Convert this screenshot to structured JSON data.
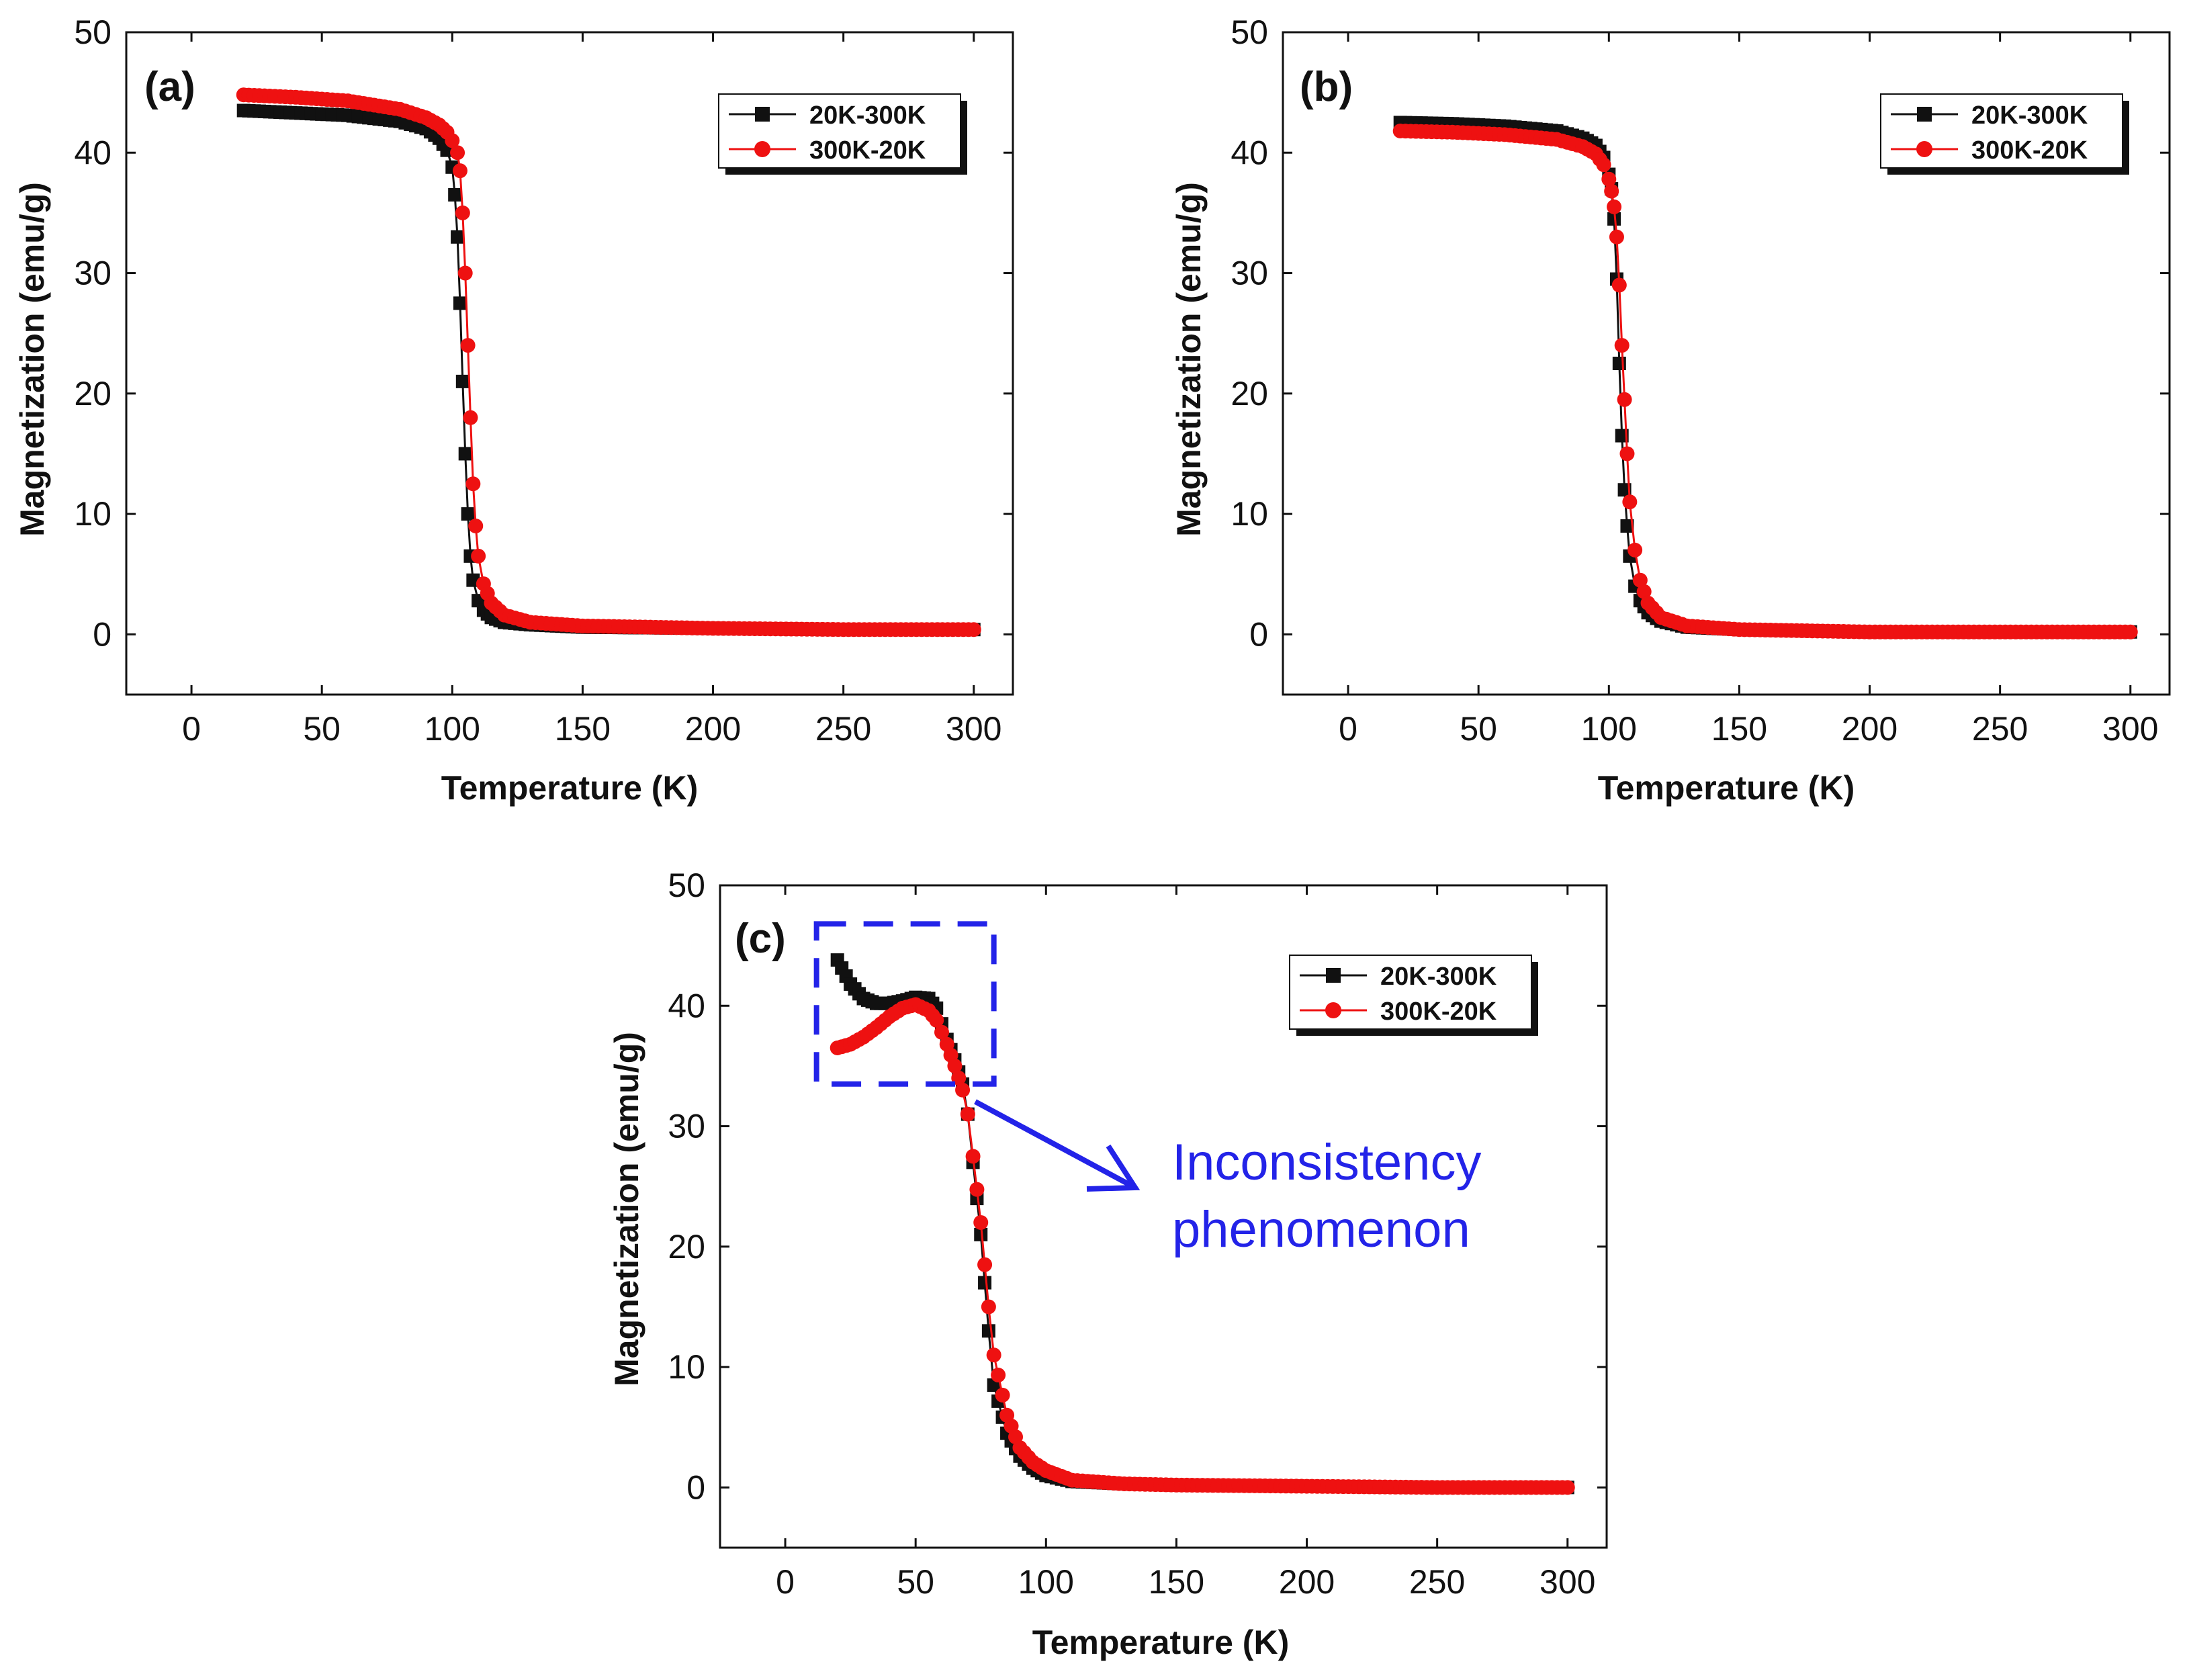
{
  "figure": {
    "description_colors": {
      "black_series": "#111111",
      "red_series": "#ee1111",
      "annotation": "#2323e8",
      "frame": "#111111"
    }
  },
  "chart_data": [
    {
      "type": "line",
      "panel_label": "(a)",
      "title": "",
      "xlabel": "Temperature (K)",
      "ylabel": "Magnetization (emu/g)",
      "xlim": [
        -25,
        315
      ],
      "ylim": [
        -5,
        50
      ],
      "xticks": [
        0,
        50,
        100,
        150,
        200,
        250,
        300
      ],
      "yticks": [
        0,
        10,
        20,
        30,
        40,
        50
      ],
      "legend_placement": "top-right",
      "series": [
        {
          "name": "20K-300K",
          "color": "#111111",
          "marker": "square",
          "x": [
            20,
            40,
            60,
            80,
            90,
            95,
            98,
            100,
            101,
            102,
            103,
            104,
            105,
            106,
            107,
            108,
            110,
            112,
            115,
            120,
            130,
            150,
            200,
            250,
            300
          ],
          "y": [
            43.5,
            43.3,
            43.1,
            42.6,
            42.0,
            41.2,
            40.2,
            38.8,
            36.5,
            33.0,
            27.5,
            21.0,
            15.0,
            10.0,
            6.5,
            4.5,
            2.8,
            2.0,
            1.4,
            1.0,
            0.8,
            0.6,
            0.5,
            0.4,
            0.4
          ]
        },
        {
          "name": "300K-20K",
          "color": "#ee1111",
          "marker": "circle",
          "x": [
            20,
            40,
            60,
            80,
            90,
            95,
            98,
            100,
            102,
            103,
            104,
            105,
            106,
            107,
            108,
            109,
            110,
            112,
            115,
            120,
            130,
            150,
            200,
            250,
            300
          ],
          "y": [
            44.8,
            44.6,
            44.3,
            43.6,
            42.9,
            42.3,
            41.7,
            41.0,
            40.0,
            38.5,
            35.0,
            30.0,
            24.0,
            18.0,
            12.5,
            9.0,
            6.5,
            4.2,
            2.6,
            1.6,
            1.0,
            0.7,
            0.5,
            0.4,
            0.4
          ]
        }
      ]
    },
    {
      "type": "line",
      "panel_label": "(b)",
      "title": "",
      "xlabel": "Temperature (K)",
      "ylabel": "Magnetization (emu/g)",
      "xlim": [
        -25,
        315
      ],
      "ylim": [
        -5,
        50
      ],
      "xticks": [
        0,
        50,
        100,
        150,
        200,
        250,
        300
      ],
      "yticks": [
        0,
        10,
        20,
        30,
        40,
        50
      ],
      "legend_placement": "top-right",
      "series": [
        {
          "name": "20K-300K",
          "color": "#111111",
          "marker": "square",
          "x": [
            20,
            40,
            60,
            80,
            90,
            95,
            98,
            100,
            101,
            102,
            103,
            104,
            105,
            106,
            107,
            108,
            110,
            112,
            115,
            120,
            130,
            150,
            200,
            250,
            300
          ],
          "y": [
            42.5,
            42.4,
            42.2,
            41.8,
            41.2,
            40.6,
            39.6,
            38.2,
            37.0,
            34.5,
            29.5,
            22.5,
            16.5,
            12.0,
            9.0,
            6.5,
            4.0,
            2.8,
            1.8,
            1.1,
            0.6,
            0.4,
            0.2,
            0.2,
            0.2
          ]
        },
        {
          "name": "300K-20K",
          "color": "#ee1111",
          "marker": "circle",
          "x": [
            20,
            40,
            60,
            80,
            90,
            95,
            98,
            100,
            101,
            102,
            103,
            104,
            105,
            106,
            107,
            108,
            110,
            112,
            115,
            120,
            130,
            150,
            200,
            250,
            300
          ],
          "y": [
            41.8,
            41.7,
            41.5,
            41.1,
            40.5,
            39.9,
            39.0,
            37.8,
            36.8,
            35.5,
            33.0,
            29.0,
            24.0,
            19.5,
            15.0,
            11.0,
            7.0,
            4.5,
            2.6,
            1.4,
            0.7,
            0.4,
            0.2,
            0.2,
            0.2
          ]
        }
      ]
    },
    {
      "type": "line",
      "panel_label": "(c)",
      "title": "",
      "xlabel": "Temperature (K)",
      "ylabel": "Magnetization (emu/g)",
      "xlim": [
        -25,
        315
      ],
      "ylim": [
        -5,
        50
      ],
      "xticks": [
        0,
        50,
        100,
        150,
        200,
        250,
        300
      ],
      "yticks": [
        0,
        10,
        20,
        30,
        40,
        50
      ],
      "legend_placement": "top-right",
      "series": [
        {
          "name": "20K-300K",
          "color": "#111111",
          "marker": "square",
          "x": [
            20,
            25,
            30,
            35,
            40,
            45,
            50,
            55,
            58,
            60,
            62,
            65,
            68,
            70,
            72,
            75,
            78,
            80,
            85,
            90,
            95,
            100,
            110,
            130,
            150,
            200,
            250,
            300
          ],
          "y": [
            43.8,
            41.8,
            40.6,
            40.2,
            40.2,
            40.4,
            40.7,
            40.6,
            39.8,
            38.5,
            37.2,
            35.5,
            33.5,
            31.0,
            27.0,
            21.0,
            13.0,
            8.5,
            4.5,
            2.6,
            1.6,
            1.0,
            0.5,
            0.3,
            0.2,
            0.1,
            0.0,
            0.0
          ]
        },
        {
          "name": "300K-20K",
          "color": "#ee1111",
          "marker": "circle",
          "x": [
            20,
            25,
            30,
            35,
            40,
            45,
            50,
            55,
            58,
            60,
            62,
            65,
            68,
            70,
            72,
            75,
            78,
            80,
            85,
            90,
            95,
            100,
            110,
            130,
            150,
            200,
            250,
            300
          ],
          "y": [
            36.5,
            36.8,
            37.4,
            38.2,
            39.1,
            39.8,
            40.1,
            39.6,
            38.8,
            37.8,
            36.8,
            35.0,
            33.0,
            31.0,
            27.5,
            22.0,
            15.0,
            11.0,
            6.0,
            3.3,
            2.1,
            1.4,
            0.6,
            0.3,
            0.2,
            0.1,
            0.0,
            0.0
          ]
        }
      ],
      "annotation": {
        "line1": "Inconsistency",
        "line2": "phenomenon",
        "box_data_range": {
          "x": [
            12,
            80
          ],
          "y": [
            33.5,
            46.8
          ]
        },
        "color": "#2323e8"
      }
    }
  ]
}
